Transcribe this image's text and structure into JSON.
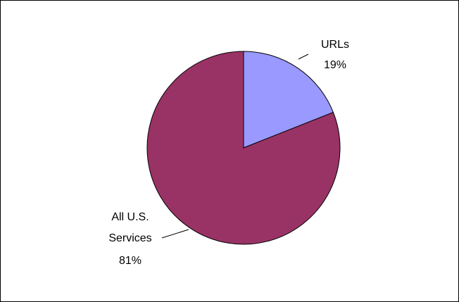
{
  "chart_data": {
    "type": "pie",
    "title": "",
    "slices": [
      {
        "label": "URLs",
        "value": 19,
        "value_label": "19%",
        "color": "#9999ff"
      },
      {
        "label_lines": [
          "All U.S.",
          "Services"
        ],
        "value": 81,
        "value_label": "81%",
        "color": "#993366"
      }
    ],
    "legend": "none"
  }
}
